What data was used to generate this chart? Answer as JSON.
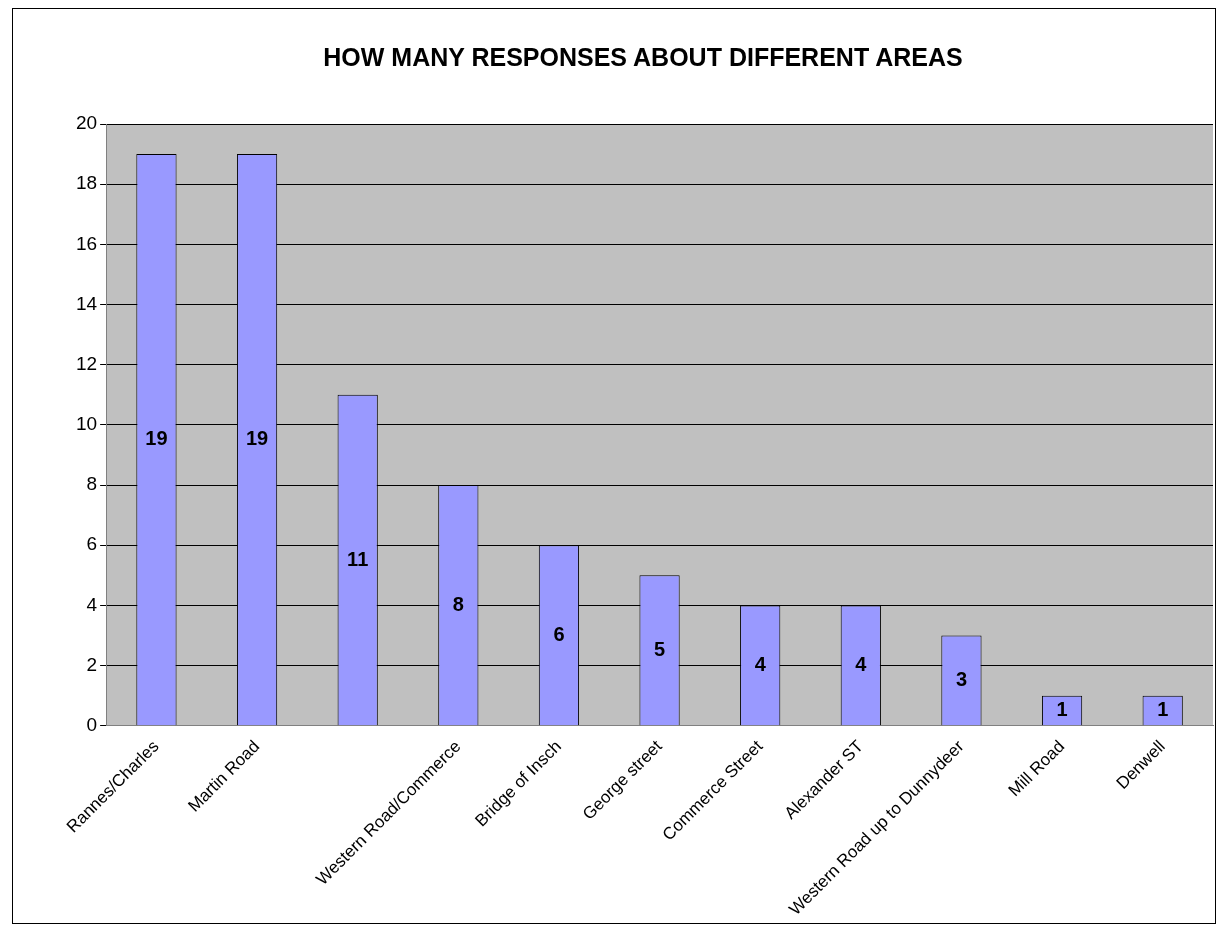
{
  "chart_data": {
    "type": "bar",
    "title": "HOW MANY RESPONSES ABOUT DIFFERENT AREAS",
    "categories": [
      "Rannes/Charles",
      "Martin Road",
      null,
      "Western Road/Commerce",
      "Bridge of Insch",
      "George street",
      "Commerce Street",
      "Alexander ST",
      "Western Road up to Dunnydeer",
      "Mill Road",
      "Denwell"
    ],
    "values": [
      19,
      19,
      11,
      8,
      6,
      5,
      4,
      4,
      3,
      1,
      1
    ],
    "color": "#9999ff",
    "ylim": [
      0,
      20
    ],
    "yticks": [
      0,
      2,
      4,
      6,
      8,
      10,
      12,
      14,
      16,
      18,
      20
    ],
    "grid": "y",
    "legend": false,
    "data_labels": true
  }
}
